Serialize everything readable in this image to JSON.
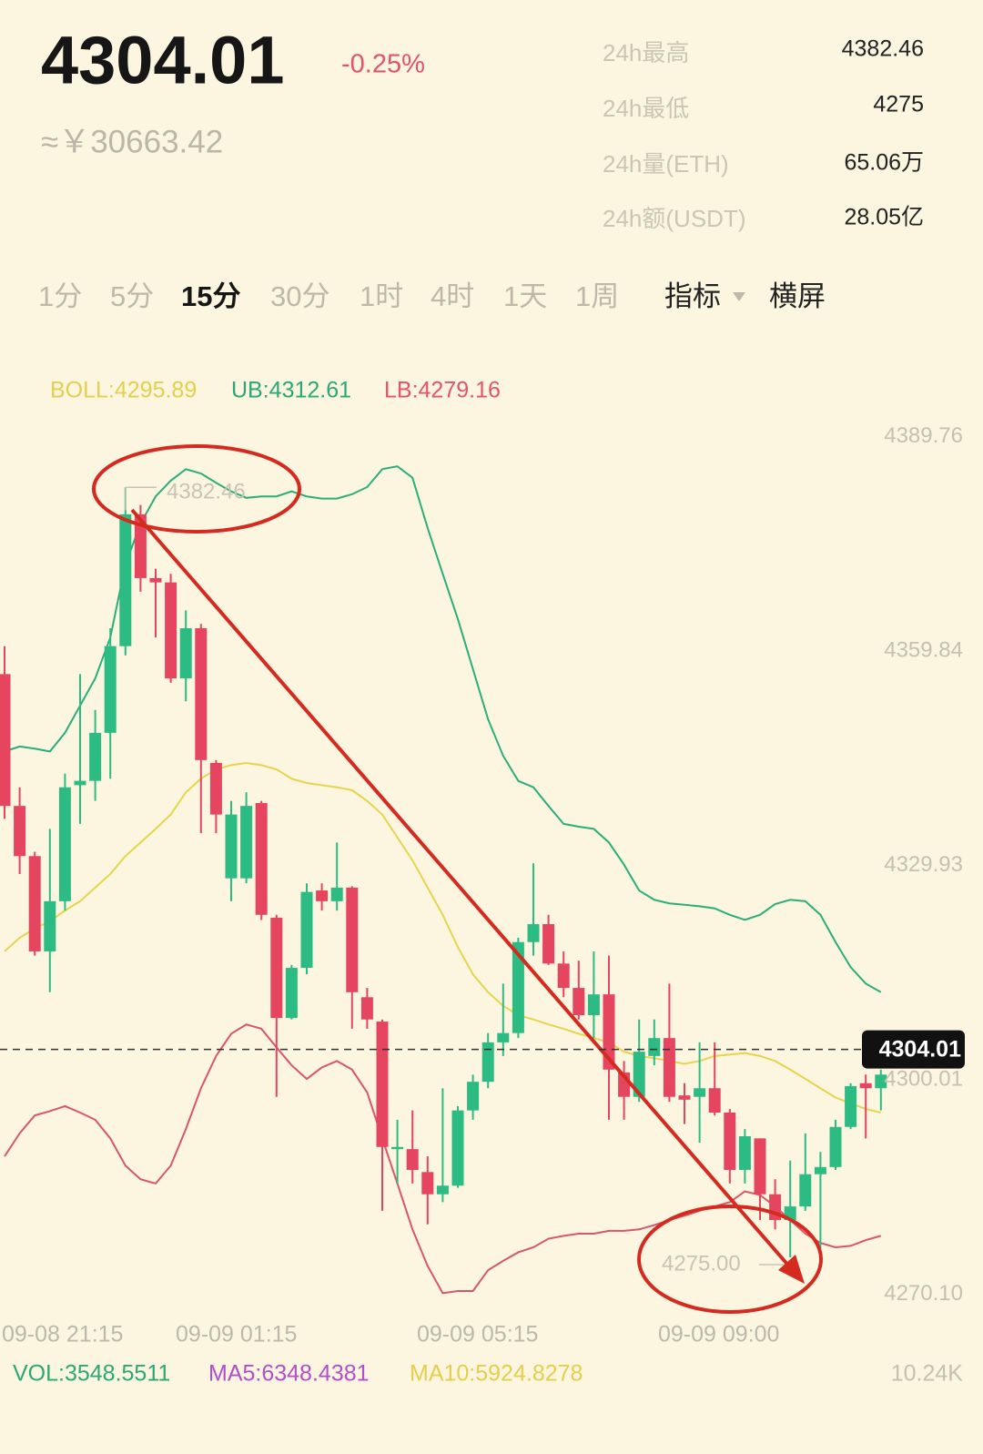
{
  "header": {
    "price": "4304.01",
    "change": "-0.25%",
    "cny": "≈￥30663.42",
    "stats": [
      {
        "label": "24h最高",
        "value": "4382.46"
      },
      {
        "label": "24h最低",
        "value": "4275"
      },
      {
        "label": "24h量(ETH)",
        "value": "65.06万"
      },
      {
        "label": "24h额(USDT)",
        "value": "28.05亿"
      }
    ]
  },
  "tabs": [
    "1分",
    "5分",
    "15分",
    "30分",
    "1时",
    "4时",
    "1天",
    "1周"
  ],
  "active_tab": 2,
  "menu": [
    "指标",
    "横屏"
  ],
  "indicators": [
    "BOLL:4295.89",
    "UB:4312.61",
    "LB:4279.16"
  ],
  "chart_data": {
    "type": "candlestick",
    "ylim": [
      4267.5,
      4393.3
    ],
    "yticks": [
      {
        "value": 4270.1,
        "label": "4270.10"
      },
      4300.01,
      4329.93,
      4359.84,
      4389.76
    ],
    "x_labels": [
      "09-08 21:15",
      "09-09 01:15",
      "09-09 05:15",
      "09-09 09:00"
    ],
    "up_color": "#2dbb84",
    "down_color": "#e5455f",
    "open": [
      4356.4,
      4338.0,
      4331.0,
      4317.7,
      4324.7,
      4340.9,
      4341.5,
      4348.2,
      4360.3,
      4378.7,
      4369.8,
      4369.2,
      4355.8,
      4362.8,
      4344.0,
      4327.9,
      4327.9,
      4338.4,
      4322.4,
      4308.4,
      4315.4,
      4326.2,
      4324.7,
      4326.6,
      4311.3,
      4307.9,
      4290.1,
      4290.1,
      4286.9,
      4283.8,
      4285.0,
      4295.5,
      4299.5,
      4305.0,
      4306.3,
      4319.0,
      4321.5,
      4316.0,
      4312.6,
      4308.8,
      4311.7,
      4300.8,
      4297.4,
      4303.1,
      4305.6,
      4297.6,
      4297.4,
      4298.6,
      4295.2,
      4287.2,
      4291.6,
      4283.8,
      4280.2,
      4282.1,
      4286.6,
      4287.6,
      4293.2,
      4299.3,
      4298.6
    ],
    "high": [
      4360.3,
      4340.6,
      4331.6,
      4334.8,
      4342.5,
      4356.4,
      4351.4,
      4362.8,
      4382.46,
      4380.0,
      4371.1,
      4370.4,
      4365.3,
      4363.4,
      4344.4,
      4338.7,
      4339.9,
      4338.7,
      4322.8,
      4315.8,
      4327.2,
      4327.2,
      4332.9,
      4326.8,
      4312.6,
      4308.2,
      4294.2,
      4295.5,
      4289.1,
      4298.6,
      4296.1,
      4300.5,
      4306.3,
      4313.2,
      4319.6,
      4330.0,
      4322.8,
      4317.7,
      4316.4,
      4317.7,
      4317.1,
      4302.4,
      4308.2,
      4308.2,
      4313.2,
      4299.3,
      4305.0,
      4305.0,
      4295.7,
      4292.9,
      4291.6,
      4285.9,
      4288.5,
      4292.3,
      4289.7,
      4294.2,
      4299.3,
      4300.5,
      4301.2
    ],
    "low": [
      4336.2,
      4328.5,
      4317.1,
      4312.0,
      4323.4,
      4335.5,
      4338.7,
      4341.8,
      4359.0,
      4367.9,
      4361.5,
      4355.2,
      4352.6,
      4334.2,
      4334.2,
      4324.7,
      4327.2,
      4322.1,
      4297.4,
      4308.2,
      4314.5,
      4323.4,
      4323.4,
      4306.9,
      4306.9,
      4281.5,
      4285.3,
      4285.3,
      4279.6,
      4282.7,
      4284.7,
      4294.2,
      4298.6,
      4303.1,
      4305.6,
      4317.1,
      4315.8,
      4311.3,
      4308.2,
      4305.6,
      4294.2,
      4294.2,
      4296.7,
      4301.8,
      4296.7,
      4293.6,
      4291.0,
      4294.8,
      4285.3,
      4285.3,
      4280.2,
      4278.9,
      4275,
      4281.5,
      4275.1,
      4287.2,
      4292.9,
      4291.6,
      4295.5
    ],
    "close": [
      4338.0,
      4331.0,
      4317.7,
      4324.7,
      4340.6,
      4341.5,
      4348.2,
      4360.3,
      4378.7,
      4369.8,
      4369.2,
      4355.8,
      4362.8,
      4344.4,
      4336.8,
      4336.8,
      4338.0,
      4322.8,
      4308.4,
      4315.4,
      4326.0,
      4324.7,
      4326.6,
      4312.0,
      4308.2,
      4290.4,
      4290.4,
      4287.2,
      4283.8,
      4285.0,
      4295.5,
      4299.5,
      4305.0,
      4306.3,
      4319.0,
      4321.5,
      4316.0,
      4312.6,
      4308.8,
      4311.7,
      4301.2,
      4297.4,
      4303.7,
      4305.6,
      4297.4,
      4297.0,
      4298.6,
      4295.2,
      4287.2,
      4291.9,
      4283.8,
      4280.2,
      4282.1,
      4286.6,
      4287.6,
      4293.2,
      4298.9,
      4298.6,
      4300.5
    ],
    "series": [
      {
        "color": "#2aae7a",
        "values": [
          4345.6,
          4346.3,
          4346.0,
          4345.6,
          4348.2,
          4352.0,
          4355.8,
          4361.5,
          4371.7,
          4377.4,
          4381.2,
          4383.4,
          4385.0,
          4384.4,
          4383.1,
          4381.9,
          4381.0,
          4381.2,
          4381.2,
          4381.9,
          4381.2,
          4380.9,
          4380.9,
          4381.5,
          4382.5,
          4385.0,
          4385.4,
          4383.8,
          4376.8,
          4370.4,
          4364.1,
          4357.1,
          4350.1,
          4345.0,
          4341.5,
          4340.6,
          4338.0,
          4335.5,
          4335.1,
          4334.8,
          4332.9,
          4329.8,
          4326.2,
          4324.9,
          4324.4,
          4324.2,
          4324.0,
          4323.7,
          4322.8,
          4322.1,
          4322.8,
          4324.3,
          4324.9,
          4324.7,
          4322.8,
          4319.0,
          4315.5,
          4313.2,
          4312.0
        ]
      },
      {
        "color": "#e6d54c",
        "values": [
          4317.7,
          4319.6,
          4320.9,
          4321.9,
          4323.4,
          4324.7,
          4326.6,
          4328.5,
          4331.0,
          4332.9,
          4334.8,
          4336.8,
          4339.9,
          4341.8,
          4343.1,
          4343.7,
          4344.0,
          4343.7,
          4343.1,
          4341.8,
          4341.2,
          4340.9,
          4340.6,
          4340.2,
          4338.7,
          4336.8,
          4333.6,
          4330.4,
          4326.6,
          4322.8,
          4318.3,
          4314.5,
          4312.0,
          4310.1,
          4308.8,
          4308.2,
          4307.5,
          4306.9,
          4306.2,
          4305.6,
          4305.0,
          4303.7,
          4303.1,
          4302.8,
          4302.4,
          4302.0,
          4302.4,
          4303.1,
          4303.3,
          4303.5,
          4303.1,
          4302.4,
          4301.2,
          4299.9,
          4298.6,
          4297.3,
          4296.5,
          4295.7,
          4295.2
        ]
      },
      {
        "color": "#d9566a",
        "values": [
          4289.1,
          4292.3,
          4294.8,
          4295.4,
          4296.1,
          4295.2,
          4294.2,
          4291.6,
          4287.8,
          4285.9,
          4285.3,
          4287.8,
          4292.9,
          4298.6,
          4303.1,
          4306.2,
          4307.5,
          4306.9,
          4304.3,
          4301.8,
          4299.9,
          4301.5,
          4302.4,
          4301.2,
          4298.0,
          4291.6,
          4285.3,
          4278.9,
          4273.8,
          4270.0,
          4270.3,
          4270.3,
          4273.2,
          4274.5,
          4275.7,
          4276.4,
          4277.6,
          4278.0,
          4278.3,
          4278.3,
          4278.7,
          4278.7,
          4278.9,
          4279.5,
          4280.2,
          4280.8,
          4281.5,
          4282.1,
          4282.7,
          4284.2,
          4283.7,
          4282.1,
          4280.2,
          4278.3,
          4277.0,
          4276.4,
          4276.6,
          4277.4,
          4278.0
        ]
      }
    ],
    "high_label": 4382.46,
    "low_label": {
      "value": 4275,
      "label": "4275.00"
    },
    "last_price": 4304.01
  },
  "volume": {
    "vol": "VOL:3548.5511",
    "ma5": "MA5:6348.4381",
    "ma10": "MA10:5924.8278",
    "axis_label": "10.24K"
  }
}
